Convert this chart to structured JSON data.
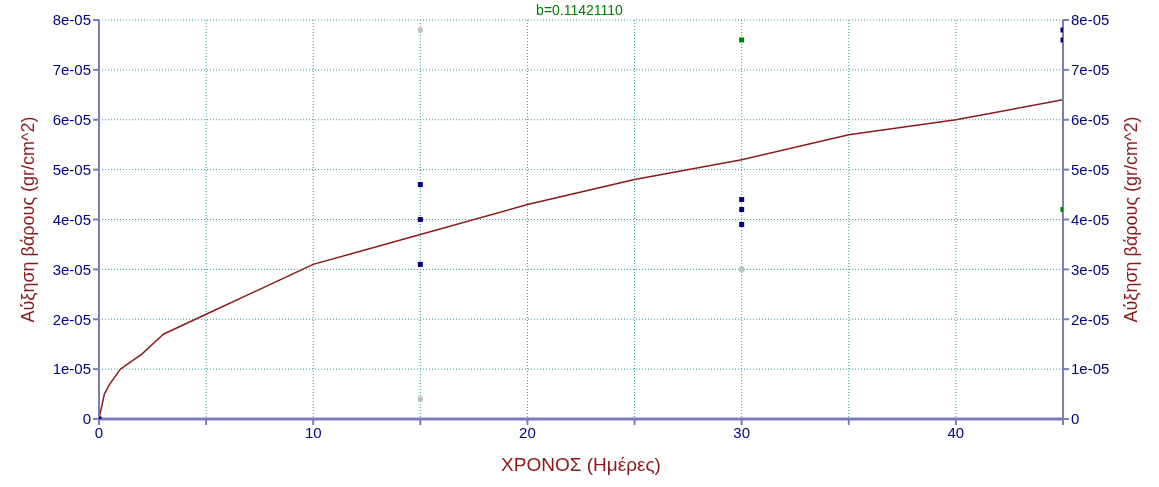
{
  "chart_data": {
    "type": "scatter",
    "xlabel": "ΧΡΟΝΟΣ (Ημέρες)",
    "ylabel": "Αύξηση βάρους (gr/cm^2)",
    "y2label": "Αύξηση βάρους (gr/cm^2)",
    "annotations": [
      "b=0.11421110"
    ],
    "xlim": [
      0,
      45
    ],
    "xticks": [
      0,
      {
        "value": 5,
        "label": null
      },
      10,
      {
        "value": 15,
        "label": null
      },
      20,
      {
        "value": 25,
        "label": null
      },
      30,
      {
        "value": 35,
        "label": null
      },
      40,
      {
        "value": 45,
        "label": null
      }
    ],
    "ylim": [
      0,
      8e-05
    ],
    "yticks": [
      0,
      {
        "value": 1e-05,
        "label": "1e-05"
      },
      {
        "value": 2e-05,
        "label": "2e-05"
      },
      {
        "value": 3e-05,
        "label": "3e-05"
      },
      {
        "value": 4e-05,
        "label": "4e-05"
      },
      {
        "value": 5e-05,
        "label": "5e-05"
      },
      {
        "value": 6e-05,
        "label": "6e-05"
      },
      {
        "value": 7e-05,
        "label": "7e-05"
      },
      {
        "value": 8e-05,
        "label": "8e-05"
      }
    ],
    "y2lim": [
      0,
      8e-05
    ],
    "y2ticks": [
      0,
      {
        "value": 1e-05,
        "label": "1e-05"
      },
      {
        "value": 2e-05,
        "label": "2e-05"
      },
      {
        "value": 3e-05,
        "label": "3e-05"
      },
      {
        "value": 4e-05,
        "label": "4e-05"
      },
      {
        "value": 5e-05,
        "label": "5e-05"
      },
      {
        "value": 6e-05,
        "label": "6e-05"
      },
      {
        "value": 7e-05,
        "label": "7e-05"
      },
      {
        "value": 8e-05,
        "label": "8e-05"
      }
    ],
    "grid": true,
    "marker": "square",
    "series": [
      {
        "type": "line",
        "marker": "none",
        "color": "#8b1a1a",
        "x": [
          0,
          0.25,
          0.5,
          1,
          2,
          3,
          5,
          7.5,
          10,
          15,
          20,
          25,
          30,
          35,
          40,
          45
        ],
        "values": [
          0,
          5e-06,
          7e-06,
          1e-05,
          1.3e-05,
          1.7e-05,
          2.1e-05,
          2.6e-05,
          3.1e-05,
          3.7e-05,
          4.3e-05,
          4.8e-05,
          5.2e-05,
          5.7e-05,
          6e-05,
          6.4e-05
        ]
      },
      {
        "color": "#c0c0c0",
        "x": [
          15,
          15,
          30
        ],
        "values": [
          7.8e-05,
          4e-06,
          3e-05
        ]
      },
      {
        "color": "#008000",
        "x": [
          30,
          45
        ],
        "values": [
          7.6e-05,
          4.2e-05
        ]
      },
      {
        "color": "#000080",
        "x": [
          0,
          15,
          15,
          15,
          30,
          30,
          30,
          45,
          45
        ],
        "values": [
          0,
          4.7e-05,
          4e-05,
          3.1e-05,
          4.4e-05,
          4.2e-05,
          3.9e-05,
          7.8e-05,
          7.6e-05
        ]
      }
    ]
  }
}
